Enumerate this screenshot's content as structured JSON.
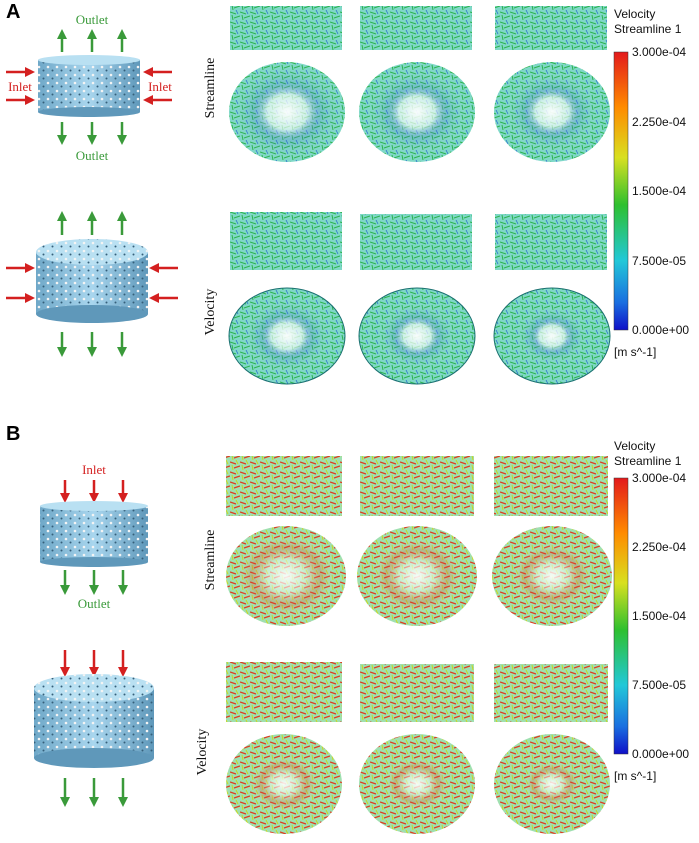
{
  "panel_a": {
    "label": "A",
    "diagram_top": {
      "outlet_top": "Outlet",
      "inlet_left": "Inlet",
      "inlet_right": "Inlet",
      "outlet_bottom": "Outlet"
    },
    "row_labels": [
      "Streamline",
      "Velocity"
    ],
    "colorbar": {
      "title": "Velocity",
      "subtitle": "Streamline 1",
      "ticks": [
        "3.000e-04",
        "2.250e-04",
        "1.500e-04",
        "7.500e-05",
        "0.000e+00"
      ],
      "unit": "[m s^-1]"
    }
  },
  "panel_b": {
    "label": "B",
    "diagram_top": {
      "inlet": "Inlet",
      "outlet": "Outlet"
    },
    "row_labels": [
      "Streamline",
      "Velocity"
    ],
    "colorbar": {
      "title": "Velocity",
      "subtitle": "Streamline 1",
      "ticks": [
        "3.000e-04",
        "2.250e-04",
        "1.500e-04",
        "7.500e-05",
        "0.000e+00"
      ],
      "unit": "[m s^-1]"
    }
  }
}
